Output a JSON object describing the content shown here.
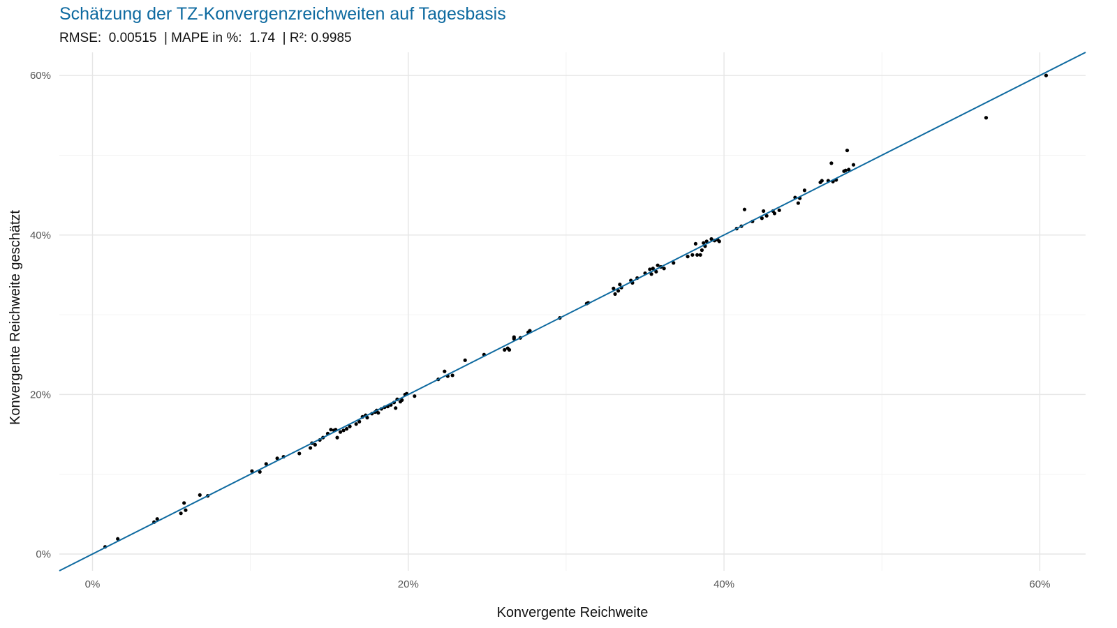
{
  "chart_data": {
    "type": "scatter",
    "title": "Schätzung der TZ-Konvergenzreichweiten auf Tagesbasis",
    "subtitle": "RMSE:  0.00515  | MAPE in %:  1.74  | R²: 0.9985",
    "xlabel": "Konvergente Reichweite",
    "ylabel": "Konvergente Reichweite geschätzt",
    "xlim": [
      -0.021,
      0.629
    ],
    "ylim": [
      -0.021,
      0.629
    ],
    "x_ticks": [
      0,
      0.2,
      0.4,
      0.6
    ],
    "x_tick_labels": [
      "0%",
      "20%",
      "40%",
      "60%"
    ],
    "y_ticks": [
      0,
      0.2,
      0.4,
      0.6
    ],
    "y_tick_labels": [
      "0%",
      "20%",
      "40%",
      "60%"
    ],
    "grid": true,
    "reference_line": {
      "slope": 1,
      "intercept": 0,
      "color": "#0e6aa0"
    },
    "point_color": "#000000",
    "points": [
      [
        0.008,
        0.009
      ],
      [
        0.016,
        0.019
      ],
      [
        0.039,
        0.04
      ],
      [
        0.041,
        0.044
      ],
      [
        0.056,
        0.051
      ],
      [
        0.058,
        0.064
      ],
      [
        0.059,
        0.055
      ],
      [
        0.068,
        0.074
      ],
      [
        0.073,
        0.073
      ],
      [
        0.101,
        0.104
      ],
      [
        0.106,
        0.103
      ],
      [
        0.11,
        0.113
      ],
      [
        0.117,
        0.12
      ],
      [
        0.121,
        0.122
      ],
      [
        0.131,
        0.126
      ],
      [
        0.138,
        0.133
      ],
      [
        0.139,
        0.139
      ],
      [
        0.141,
        0.137
      ],
      [
        0.144,
        0.143
      ],
      [
        0.146,
        0.146
      ],
      [
        0.149,
        0.151
      ],
      [
        0.151,
        0.156
      ],
      [
        0.153,
        0.155
      ],
      [
        0.154,
        0.156
      ],
      [
        0.155,
        0.146
      ],
      [
        0.157,
        0.153
      ],
      [
        0.159,
        0.155
      ],
      [
        0.161,
        0.157
      ],
      [
        0.163,
        0.16
      ],
      [
        0.167,
        0.163
      ],
      [
        0.169,
        0.166
      ],
      [
        0.171,
        0.172
      ],
      [
        0.173,
        0.174
      ],
      [
        0.174,
        0.171
      ],
      [
        0.177,
        0.176
      ],
      [
        0.179,
        0.178
      ],
      [
        0.18,
        0.18
      ],
      [
        0.181,
        0.177
      ],
      [
        0.183,
        0.182
      ],
      [
        0.185,
        0.184
      ],
      [
        0.187,
        0.185
      ],
      [
        0.189,
        0.187
      ],
      [
        0.191,
        0.19
      ],
      [
        0.192,
        0.183
      ],
      [
        0.193,
        0.194
      ],
      [
        0.195,
        0.191
      ],
      [
        0.196,
        0.193
      ],
      [
        0.198,
        0.2
      ],
      [
        0.199,
        0.201
      ],
      [
        0.204,
        0.198
      ],
      [
        0.219,
        0.219
      ],
      [
        0.223,
        0.229
      ],
      [
        0.225,
        0.223
      ],
      [
        0.228,
        0.224
      ],
      [
        0.236,
        0.243
      ],
      [
        0.248,
        0.25
      ],
      [
        0.261,
        0.256
      ],
      [
        0.263,
        0.258
      ],
      [
        0.264,
        0.256
      ],
      [
        0.267,
        0.27
      ],
      [
        0.267,
        0.272
      ],
      [
        0.271,
        0.271
      ],
      [
        0.276,
        0.278
      ],
      [
        0.277,
        0.28
      ],
      [
        0.296,
        0.296
      ],
      [
        0.313,
        0.314
      ],
      [
        0.314,
        0.315
      ],
      [
        0.33,
        0.333
      ],
      [
        0.331,
        0.326
      ],
      [
        0.333,
        0.33
      ],
      [
        0.334,
        0.338
      ],
      [
        0.335,
        0.334
      ],
      [
        0.341,
        0.343
      ],
      [
        0.342,
        0.34
      ],
      [
        0.345,
        0.346
      ],
      [
        0.35,
        0.352
      ],
      [
        0.353,
        0.357
      ],
      [
        0.354,
        0.351
      ],
      [
        0.355,
        0.358
      ],
      [
        0.357,
        0.354
      ],
      [
        0.358,
        0.362
      ],
      [
        0.36,
        0.36
      ],
      [
        0.362,
        0.358
      ],
      [
        0.368,
        0.365
      ],
      [
        0.377,
        0.373
      ],
      [
        0.38,
        0.375
      ],
      [
        0.382,
        0.389
      ],
      [
        0.383,
        0.375
      ],
      [
        0.385,
        0.375
      ],
      [
        0.386,
        0.381
      ],
      [
        0.387,
        0.39
      ],
      [
        0.388,
        0.386
      ],
      [
        0.389,
        0.392
      ],
      [
        0.392,
        0.395
      ],
      [
        0.394,
        0.393
      ],
      [
        0.396,
        0.394
      ],
      [
        0.397,
        0.392
      ],
      [
        0.408,
        0.408
      ],
      [
        0.411,
        0.411
      ],
      [
        0.413,
        0.432
      ],
      [
        0.418,
        0.417
      ],
      [
        0.424,
        0.421
      ],
      [
        0.425,
        0.43
      ],
      [
        0.427,
        0.424
      ],
      [
        0.431,
        0.43
      ],
      [
        0.432,
        0.427
      ],
      [
        0.435,
        0.431
      ],
      [
        0.445,
        0.447
      ],
      [
        0.447,
        0.44
      ],
      [
        0.448,
        0.446
      ],
      [
        0.451,
        0.456
      ],
      [
        0.461,
        0.466
      ],
      [
        0.462,
        0.468
      ],
      [
        0.466,
        0.468
      ],
      [
        0.468,
        0.49
      ],
      [
        0.469,
        0.467
      ],
      [
        0.471,
        0.469
      ],
      [
        0.476,
        0.48
      ],
      [
        0.477,
        0.481
      ],
      [
        0.478,
        0.506
      ],
      [
        0.479,
        0.482
      ],
      [
        0.482,
        0.488
      ],
      [
        0.566,
        0.547
      ],
      [
        0.604,
        0.6
      ]
    ]
  }
}
